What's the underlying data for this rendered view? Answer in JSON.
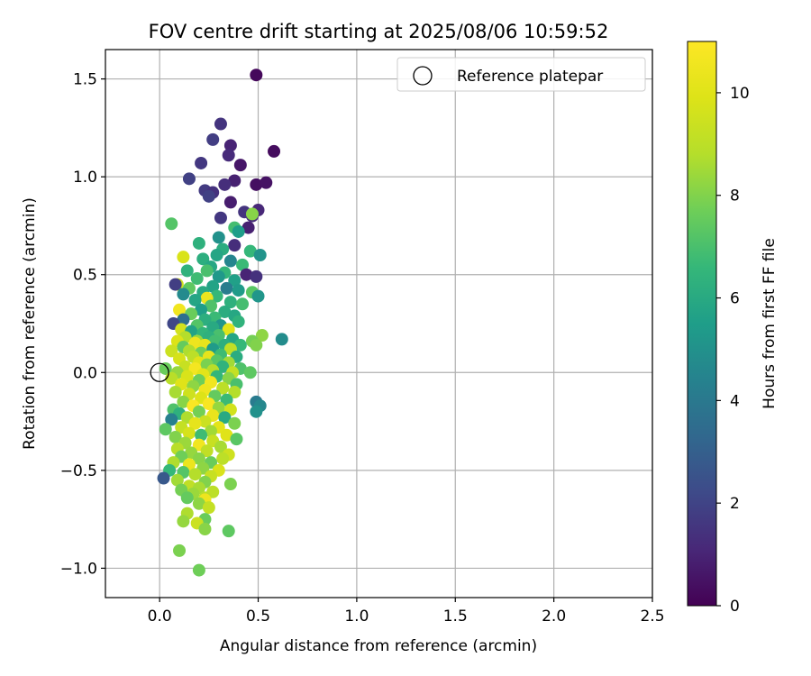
{
  "chart_data": {
    "type": "scatter",
    "title": "FOV centre drift starting at 2025/08/06 10:59:52",
    "xlabel": "Angular distance from reference (arcmin)",
    "ylabel": "Rotation from reference (arcmin)",
    "xlim": [
      -0.275,
      2.5
    ],
    "ylim": [
      -1.15,
      1.65
    ],
    "xticks": [
      0.0,
      0.5,
      1.0,
      1.5,
      2.0,
      2.5
    ],
    "xtick_labels": [
      "0.0",
      "0.5",
      "1.0",
      "1.5",
      "2.0",
      "2.5"
    ],
    "yticks": [
      -1.0,
      -0.5,
      0.0,
      0.5,
      1.0,
      1.5
    ],
    "ytick_labels": [
      "−1.0",
      "−0.5",
      "0.0",
      "0.5",
      "1.0",
      "1.5"
    ],
    "grid": true,
    "legend": {
      "position": "top-right",
      "entries": [
        {
          "label": "Reference platepar",
          "marker": "open-circle"
        }
      ]
    },
    "reference_point": {
      "x": 0.0,
      "y": 0.0,
      "label": "Reference platepar"
    },
    "colorbar": {
      "label": "Hours from first FF file",
      "colormap": "viridis",
      "range": [
        0,
        11
      ],
      "ticks": [
        0,
        2,
        4,
        6,
        8,
        10
      ],
      "tick_labels": [
        "0",
        "2",
        "4",
        "6",
        "8",
        "10"
      ]
    },
    "points": [
      {
        "x": 0.49,
        "y": 1.52,
        "h": 0.2
      },
      {
        "x": 0.31,
        "y": 1.27,
        "h": 1.5
      },
      {
        "x": 0.36,
        "y": 1.16,
        "h": 1.0
      },
      {
        "x": 0.27,
        "y": 1.19,
        "h": 1.8
      },
      {
        "x": 0.58,
        "y": 1.13,
        "h": 0.3
      },
      {
        "x": 0.35,
        "y": 1.11,
        "h": 1.2
      },
      {
        "x": 0.41,
        "y": 1.06,
        "h": 0.6
      },
      {
        "x": 0.21,
        "y": 1.07,
        "h": 1.6
      },
      {
        "x": 0.15,
        "y": 0.99,
        "h": 1.9
      },
      {
        "x": 0.38,
        "y": 0.98,
        "h": 0.9
      },
      {
        "x": 0.33,
        "y": 0.96,
        "h": 1.3
      },
      {
        "x": 0.49,
        "y": 0.96,
        "h": 0.4
      },
      {
        "x": 0.54,
        "y": 0.97,
        "h": 0.5
      },
      {
        "x": 0.23,
        "y": 0.93,
        "h": 1.7
      },
      {
        "x": 0.27,
        "y": 0.92,
        "h": 1.4
      },
      {
        "x": 0.25,
        "y": 0.9,
        "h": 1.9
      },
      {
        "x": 0.36,
        "y": 0.87,
        "h": 0.8
      },
      {
        "x": 0.5,
        "y": 0.83,
        "h": 1.1
      },
      {
        "x": 0.43,
        "y": 0.82,
        "h": 1.5
      },
      {
        "x": 0.47,
        "y": 0.8,
        "h": 1.2
      },
      {
        "x": 0.31,
        "y": 0.79,
        "h": 1.6
      },
      {
        "x": 0.45,
        "y": 0.74,
        "h": 0.9
      },
      {
        "x": 0.06,
        "y": 0.76,
        "h": 7.2
      },
      {
        "x": 0.47,
        "y": 0.81,
        "h": 8.1
      },
      {
        "x": 0.38,
        "y": 0.74,
        "h": 6.9
      },
      {
        "x": 0.4,
        "y": 0.72,
        "h": 5.5
      },
      {
        "x": 0.3,
        "y": 0.69,
        "h": 5.0
      },
      {
        "x": 0.2,
        "y": 0.66,
        "h": 6.3
      },
      {
        "x": 0.38,
        "y": 0.65,
        "h": 1.3
      },
      {
        "x": 0.32,
        "y": 0.63,
        "h": 6.1
      },
      {
        "x": 0.46,
        "y": 0.62,
        "h": 6.6
      },
      {
        "x": 0.29,
        "y": 0.6,
        "h": 5.8
      },
      {
        "x": 0.51,
        "y": 0.6,
        "h": 5.1
      },
      {
        "x": 0.12,
        "y": 0.59,
        "h": 9.8
      },
      {
        "x": 0.22,
        "y": 0.58,
        "h": 6.2
      },
      {
        "x": 0.36,
        "y": 0.57,
        "h": 4.5
      },
      {
        "x": 0.42,
        "y": 0.55,
        "h": 6.7
      },
      {
        "x": 0.26,
        "y": 0.54,
        "h": 5.9
      },
      {
        "x": 0.14,
        "y": 0.52,
        "h": 6.4
      },
      {
        "x": 0.24,
        "y": 0.52,
        "h": 7.0
      },
      {
        "x": 0.33,
        "y": 0.51,
        "h": 6.5
      },
      {
        "x": 0.44,
        "y": 0.5,
        "h": 1.0
      },
      {
        "x": 0.49,
        "y": 0.49,
        "h": 1.4
      },
      {
        "x": 0.3,
        "y": 0.49,
        "h": 5.3
      },
      {
        "x": 0.19,
        "y": 0.48,
        "h": 6.8
      },
      {
        "x": 0.38,
        "y": 0.47,
        "h": 5.6
      },
      {
        "x": 0.09,
        "y": 0.45,
        "h": 9.5
      },
      {
        "x": 0.08,
        "y": 0.45,
        "h": 1.8
      },
      {
        "x": 0.27,
        "y": 0.44,
        "h": 5.7
      },
      {
        "x": 0.15,
        "y": 0.43,
        "h": 7.4
      },
      {
        "x": 0.34,
        "y": 0.43,
        "h": 4.2
      },
      {
        "x": 0.4,
        "y": 0.42,
        "h": 5.4
      },
      {
        "x": 0.22,
        "y": 0.41,
        "h": 6.0
      },
      {
        "x": 0.47,
        "y": 0.41,
        "h": 7.3
      },
      {
        "x": 0.12,
        "y": 0.4,
        "h": 4.7
      },
      {
        "x": 0.29,
        "y": 0.39,
        "h": 6.6
      },
      {
        "x": 0.24,
        "y": 0.38,
        "h": 10.4
      },
      {
        "x": 0.5,
        "y": 0.39,
        "h": 5.2
      },
      {
        "x": 0.18,
        "y": 0.37,
        "h": 5.8
      },
      {
        "x": 0.36,
        "y": 0.36,
        "h": 6.3
      },
      {
        "x": 0.42,
        "y": 0.35,
        "h": 6.9
      },
      {
        "x": 0.26,
        "y": 0.34,
        "h": 7.1
      },
      {
        "x": 0.1,
        "y": 0.32,
        "h": 10.6
      },
      {
        "x": 0.21,
        "y": 0.32,
        "h": 5.5
      },
      {
        "x": 0.33,
        "y": 0.31,
        "h": 6.1
      },
      {
        "x": 0.16,
        "y": 0.3,
        "h": 7.6
      },
      {
        "x": 0.38,
        "y": 0.29,
        "h": 5.9
      },
      {
        "x": 0.28,
        "y": 0.28,
        "h": 6.7
      },
      {
        "x": 0.12,
        "y": 0.27,
        "h": 3.6
      },
      {
        "x": 0.23,
        "y": 0.27,
        "h": 6.2
      },
      {
        "x": 0.4,
        "y": 0.26,
        "h": 6.4
      },
      {
        "x": 0.07,
        "y": 0.25,
        "h": 2.1
      },
      {
        "x": 0.19,
        "y": 0.24,
        "h": 7.2
      },
      {
        "x": 0.31,
        "y": 0.24,
        "h": 5.1
      },
      {
        "x": 0.27,
        "y": 0.23,
        "h": 6.0
      },
      {
        "x": 0.11,
        "y": 0.22,
        "h": 9.6
      },
      {
        "x": 0.35,
        "y": 0.22,
        "h": 10.1
      },
      {
        "x": 0.16,
        "y": 0.21,
        "h": 5.7
      },
      {
        "x": 0.22,
        "y": 0.2,
        "h": 6.5
      },
      {
        "x": 0.3,
        "y": 0.19,
        "h": 7.0
      },
      {
        "x": 0.52,
        "y": 0.19,
        "h": 8.2
      },
      {
        "x": 0.13,
        "y": 0.18,
        "h": 8.8
      },
      {
        "x": 0.25,
        "y": 0.18,
        "h": 6.3
      },
      {
        "x": 0.37,
        "y": 0.17,
        "h": 5.8
      },
      {
        "x": 0.62,
        "y": 0.17,
        "h": 4.8
      },
      {
        "x": 0.09,
        "y": 0.16,
        "h": 9.9
      },
      {
        "x": 0.19,
        "y": 0.16,
        "h": 8.4
      },
      {
        "x": 0.28,
        "y": 0.16,
        "h": 6.9
      },
      {
        "x": 0.47,
        "y": 0.16,
        "h": 7.8
      },
      {
        "x": 0.18,
        "y": 0.15,
        "h": 10.5
      },
      {
        "x": 0.23,
        "y": 0.14,
        "h": 10.3
      },
      {
        "x": 0.33,
        "y": 0.14,
        "h": 6.2
      },
      {
        "x": 0.41,
        "y": 0.14,
        "h": 6.6
      },
      {
        "x": 0.49,
        "y": 0.14,
        "h": 8.0
      },
      {
        "x": 0.12,
        "y": 0.13,
        "h": 7.5
      },
      {
        "x": 0.27,
        "y": 0.12,
        "h": 5.4
      },
      {
        "x": 0.36,
        "y": 0.12,
        "h": 9.1
      },
      {
        "x": 0.06,
        "y": 0.11,
        "h": 9.4
      },
      {
        "x": 0.15,
        "y": 0.11,
        "h": 8.7
      },
      {
        "x": 0.21,
        "y": 0.1,
        "h": 7.7
      },
      {
        "x": 0.31,
        "y": 0.09,
        "h": 6.8
      },
      {
        "x": 0.25,
        "y": 0.08,
        "h": 10.2
      },
      {
        "x": 0.17,
        "y": 0.08,
        "h": 9.0
      },
      {
        "x": 0.39,
        "y": 0.08,
        "h": 6.1
      },
      {
        "x": 0.1,
        "y": 0.07,
        "h": 9.7
      },
      {
        "x": 0.29,
        "y": 0.06,
        "h": 7.3
      },
      {
        "x": 0.2,
        "y": 0.05,
        "h": 10.0
      },
      {
        "x": 0.35,
        "y": 0.05,
        "h": 8.5
      },
      {
        "x": 0.24,
        "y": 0.04,
        "h": 7.9
      },
      {
        "x": 0.13,
        "y": 0.03,
        "h": 9.3
      },
      {
        "x": 0.32,
        "y": 0.03,
        "h": 6.4
      },
      {
        "x": 0.03,
        "y": 0.02,
        "h": 7.6
      },
      {
        "x": 0.41,
        "y": 0.02,
        "h": 7.1
      },
      {
        "x": 0.18,
        "y": 0.02,
        "h": 10.7
      },
      {
        "x": 0.27,
        "y": 0.01,
        "h": 8.9
      },
      {
        "x": 0.37,
        "y": 0.0,
        "h": 9.2
      },
      {
        "x": 0.09,
        "y": 0.0,
        "h": 8.3
      },
      {
        "x": 0.22,
        "y": -0.01,
        "h": 10.1
      },
      {
        "x": 0.46,
        "y": 0.0,
        "h": 7.4
      },
      {
        "x": 0.14,
        "y": -0.02,
        "h": 9.8
      },
      {
        "x": 0.29,
        "y": -0.02,
        "h": 6.5
      },
      {
        "x": 0.06,
        "y": -0.03,
        "h": 8.9
      },
      {
        "x": 0.35,
        "y": -0.03,
        "h": 8.1
      },
      {
        "x": 0.2,
        "y": -0.04,
        "h": 7.7
      },
      {
        "x": 0.26,
        "y": -0.05,
        "h": 10.6
      },
      {
        "x": 0.11,
        "y": -0.06,
        "h": 10.0
      },
      {
        "x": 0.39,
        "y": -0.06,
        "h": 7.0
      },
      {
        "x": 0.17,
        "y": -0.07,
        "h": 8.2
      },
      {
        "x": 0.32,
        "y": -0.08,
        "h": 9.0
      },
      {
        "x": 0.23,
        "y": -0.09,
        "h": 10.5
      },
      {
        "x": 0.08,
        "y": -0.1,
        "h": 8.6
      },
      {
        "x": 0.38,
        "y": -0.1,
        "h": 8.8
      },
      {
        "x": 0.15,
        "y": -0.11,
        "h": 9.5
      },
      {
        "x": 0.28,
        "y": -0.12,
        "h": 7.5
      },
      {
        "x": 0.21,
        "y": -0.13,
        "h": 9.9
      },
      {
        "x": 0.34,
        "y": -0.14,
        "h": 6.7
      },
      {
        "x": 0.12,
        "y": -0.15,
        "h": 8.1
      },
      {
        "x": 0.49,
        "y": -0.15,
        "h": 4.1
      },
      {
        "x": 0.25,
        "y": -0.16,
        "h": 10.8
      },
      {
        "x": 0.51,
        "y": -0.17,
        "h": 4.6
      },
      {
        "x": 0.17,
        "y": -0.17,
        "h": 10.9
      },
      {
        "x": 0.3,
        "y": -0.18,
        "h": 8.3
      },
      {
        "x": 0.07,
        "y": -0.19,
        "h": 7.1
      },
      {
        "x": 0.36,
        "y": -0.19,
        "h": 9.6
      },
      {
        "x": 0.2,
        "y": -0.2,
        "h": 7.8
      },
      {
        "x": 0.49,
        "y": -0.2,
        "h": 5.0
      },
      {
        "x": 0.1,
        "y": -0.21,
        "h": 6.3
      },
      {
        "x": 0.27,
        "y": -0.22,
        "h": 10.3
      },
      {
        "x": 0.14,
        "y": -0.23,
        "h": 8.7
      },
      {
        "x": 0.33,
        "y": -0.23,
        "h": 6.0
      },
      {
        "x": 0.06,
        "y": -0.24,
        "h": 4.3
      },
      {
        "x": 0.23,
        "y": -0.25,
        "h": 9.4
      },
      {
        "x": 0.18,
        "y": -0.26,
        "h": 10.2
      },
      {
        "x": 0.38,
        "y": -0.26,
        "h": 7.9
      },
      {
        "x": 0.3,
        "y": -0.28,
        "h": 10.1
      },
      {
        "x": 0.11,
        "y": -0.28,
        "h": 9.2
      },
      {
        "x": 0.03,
        "y": -0.29,
        "h": 7.4
      },
      {
        "x": 0.26,
        "y": -0.3,
        "h": 8.5
      },
      {
        "x": 0.15,
        "y": -0.31,
        "h": 9.7
      },
      {
        "x": 0.21,
        "y": -0.32,
        "h": 6.8
      },
      {
        "x": 0.34,
        "y": -0.32,
        "h": 10.0
      },
      {
        "x": 0.08,
        "y": -0.33,
        "h": 8.0
      },
      {
        "x": 0.39,
        "y": -0.34,
        "h": 7.3
      },
      {
        "x": 0.27,
        "y": -0.35,
        "h": 9.3
      },
      {
        "x": 0.13,
        "y": -0.36,
        "h": 8.4
      },
      {
        "x": 0.2,
        "y": -0.37,
        "h": 10.6
      },
      {
        "x": 0.31,
        "y": -0.38,
        "h": 8.6
      },
      {
        "x": 0.09,
        "y": -0.39,
        "h": 8.9
      },
      {
        "x": 0.24,
        "y": -0.4,
        "h": 9.1
      },
      {
        "x": 0.16,
        "y": -0.41,
        "h": 8.3
      },
      {
        "x": 0.35,
        "y": -0.42,
        "h": 9.5
      },
      {
        "x": 0.11,
        "y": -0.43,
        "h": 7.7
      },
      {
        "x": 0.2,
        "y": -0.44,
        "h": 8.1
      },
      {
        "x": 0.32,
        "y": -0.44,
        "h": 9.0
      },
      {
        "x": 0.07,
        "y": -0.46,
        "h": 8.7
      },
      {
        "x": 0.26,
        "y": -0.46,
        "h": 7.6
      },
      {
        "x": 0.15,
        "y": -0.47,
        "h": 10.4
      },
      {
        "x": 0.22,
        "y": -0.49,
        "h": 8.2
      },
      {
        "x": 0.05,
        "y": -0.5,
        "h": 6.6
      },
      {
        "x": 0.3,
        "y": -0.5,
        "h": 9.8
      },
      {
        "x": 0.12,
        "y": -0.51,
        "h": 7.2
      },
      {
        "x": 0.18,
        "y": -0.52,
        "h": 8.8
      },
      {
        "x": 0.26,
        "y": -0.53,
        "h": 9.3
      },
      {
        "x": 0.02,
        "y": -0.54,
        "h": 2.7
      },
      {
        "x": 0.09,
        "y": -0.55,
        "h": 8.5
      },
      {
        "x": 0.23,
        "y": -0.56,
        "h": 8.0
      },
      {
        "x": 0.36,
        "y": -0.57,
        "h": 7.9
      },
      {
        "x": 0.15,
        "y": -0.58,
        "h": 9.1
      },
      {
        "x": 0.2,
        "y": -0.59,
        "h": 8.6
      },
      {
        "x": 0.11,
        "y": -0.6,
        "h": 7.8
      },
      {
        "x": 0.27,
        "y": -0.61,
        "h": 9.0
      },
      {
        "x": 0.17,
        "y": -0.62,
        "h": 8.4
      },
      {
        "x": 0.23,
        "y": -0.64,
        "h": 8.9
      },
      {
        "x": 0.14,
        "y": -0.64,
        "h": 7.5
      },
      {
        "x": 0.23,
        "y": -0.65,
        "h": 10.5
      },
      {
        "x": 0.2,
        "y": -0.67,
        "h": 8.2
      },
      {
        "x": 0.25,
        "y": -0.69,
        "h": 9.2
      },
      {
        "x": 0.14,
        "y": -0.72,
        "h": 8.7
      },
      {
        "x": 0.23,
        "y": -0.75,
        "h": 7.6
      },
      {
        "x": 0.12,
        "y": -0.76,
        "h": 8.3
      },
      {
        "x": 0.19,
        "y": -0.77,
        "h": 9.4
      },
      {
        "x": 0.23,
        "y": -0.8,
        "h": 8.1
      },
      {
        "x": 0.35,
        "y": -0.81,
        "h": 7.4
      },
      {
        "x": 0.1,
        "y": -0.91,
        "h": 7.9
      },
      {
        "x": 0.2,
        "y": -1.01,
        "h": 7.7
      }
    ]
  }
}
